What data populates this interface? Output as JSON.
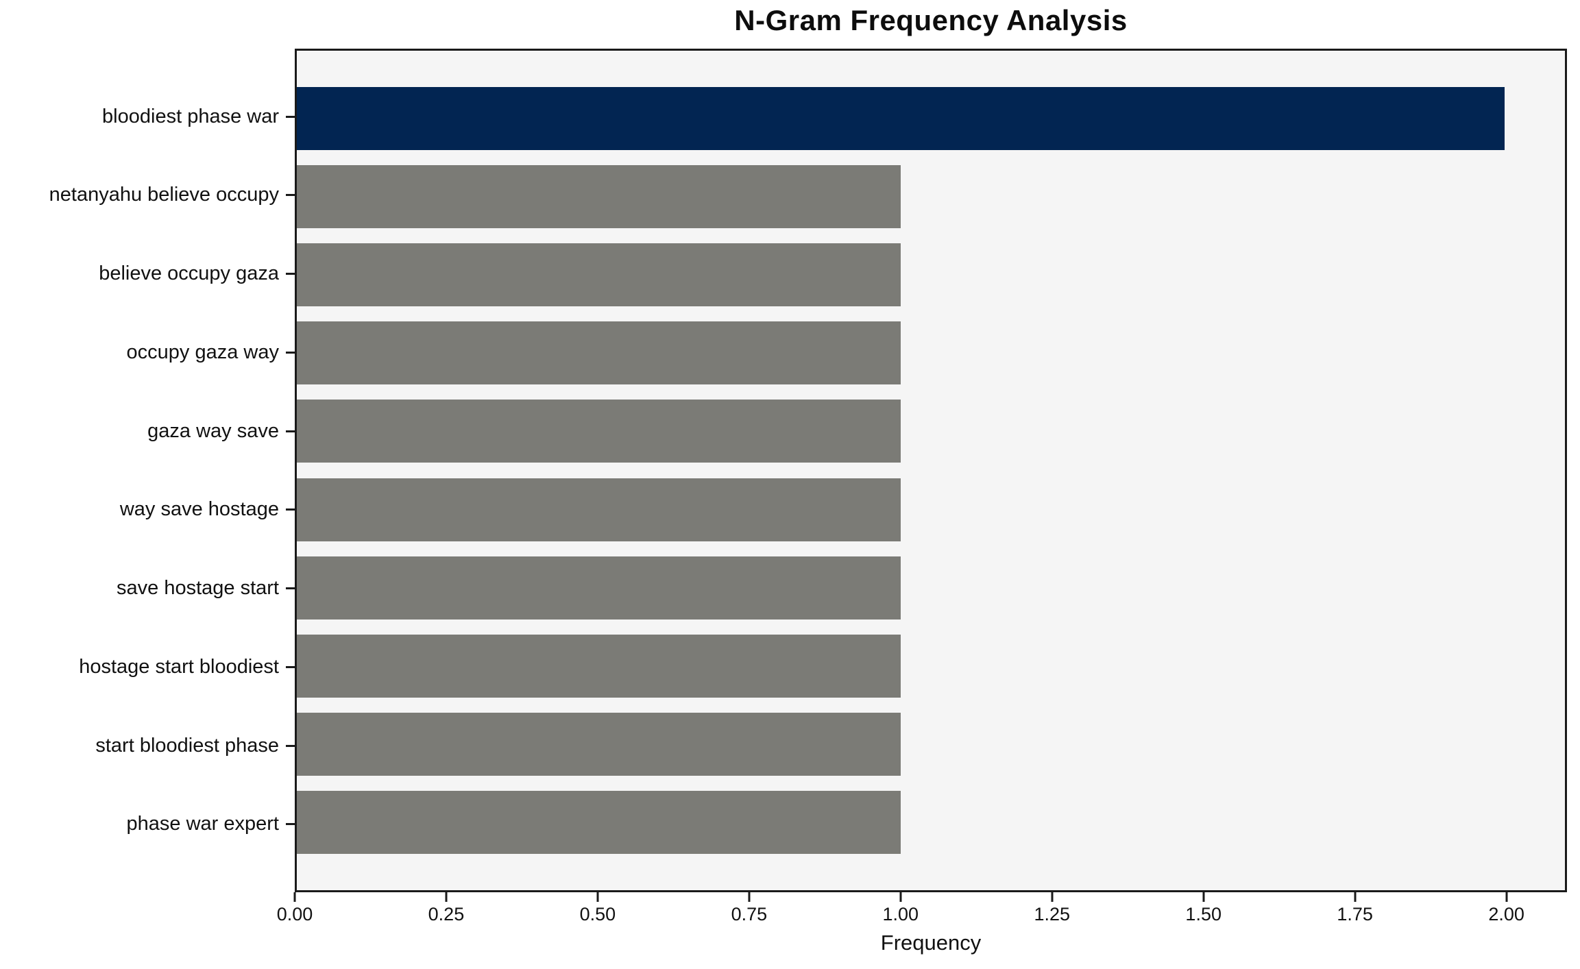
{
  "chart_data": {
    "type": "bar",
    "orientation": "horizontal",
    "title": "N-Gram Frequency Analysis",
    "xlabel": "Frequency",
    "ylabel": "",
    "categories": [
      "bloodiest phase war",
      "netanyahu believe occupy",
      "believe occupy gaza",
      "occupy gaza way",
      "gaza way save",
      "way save hostage",
      "save hostage start",
      "hostage start bloodiest",
      "start bloodiest phase",
      "phase war expert"
    ],
    "values": [
      2,
      1,
      1,
      1,
      1,
      1,
      1,
      1,
      1,
      1
    ],
    "bar_colors": [
      "#022552",
      "#7b7b76",
      "#7b7b76",
      "#7b7b76",
      "#7b7b76",
      "#7b7b76",
      "#7b7b76",
      "#7b7b76",
      "#7b7b76",
      "#7b7b76"
    ],
    "xlim": [
      0,
      2.1
    ],
    "xticks": [
      0.0,
      0.25,
      0.5,
      0.75,
      1.0,
      1.25,
      1.5,
      1.75,
      2.0
    ],
    "xtick_labels": [
      "0.00",
      "0.25",
      "0.50",
      "0.75",
      "1.00",
      "1.25",
      "1.50",
      "1.75",
      "2.00"
    ],
    "grid": false,
    "legend": false,
    "colors": {
      "highlight_bar": "#022552",
      "default_bar": "#7b7b76",
      "plot_background": "#f5f5f5",
      "figure_background": "#ffffff",
      "spine": "#1a1a1a",
      "text": "#111111"
    }
  }
}
